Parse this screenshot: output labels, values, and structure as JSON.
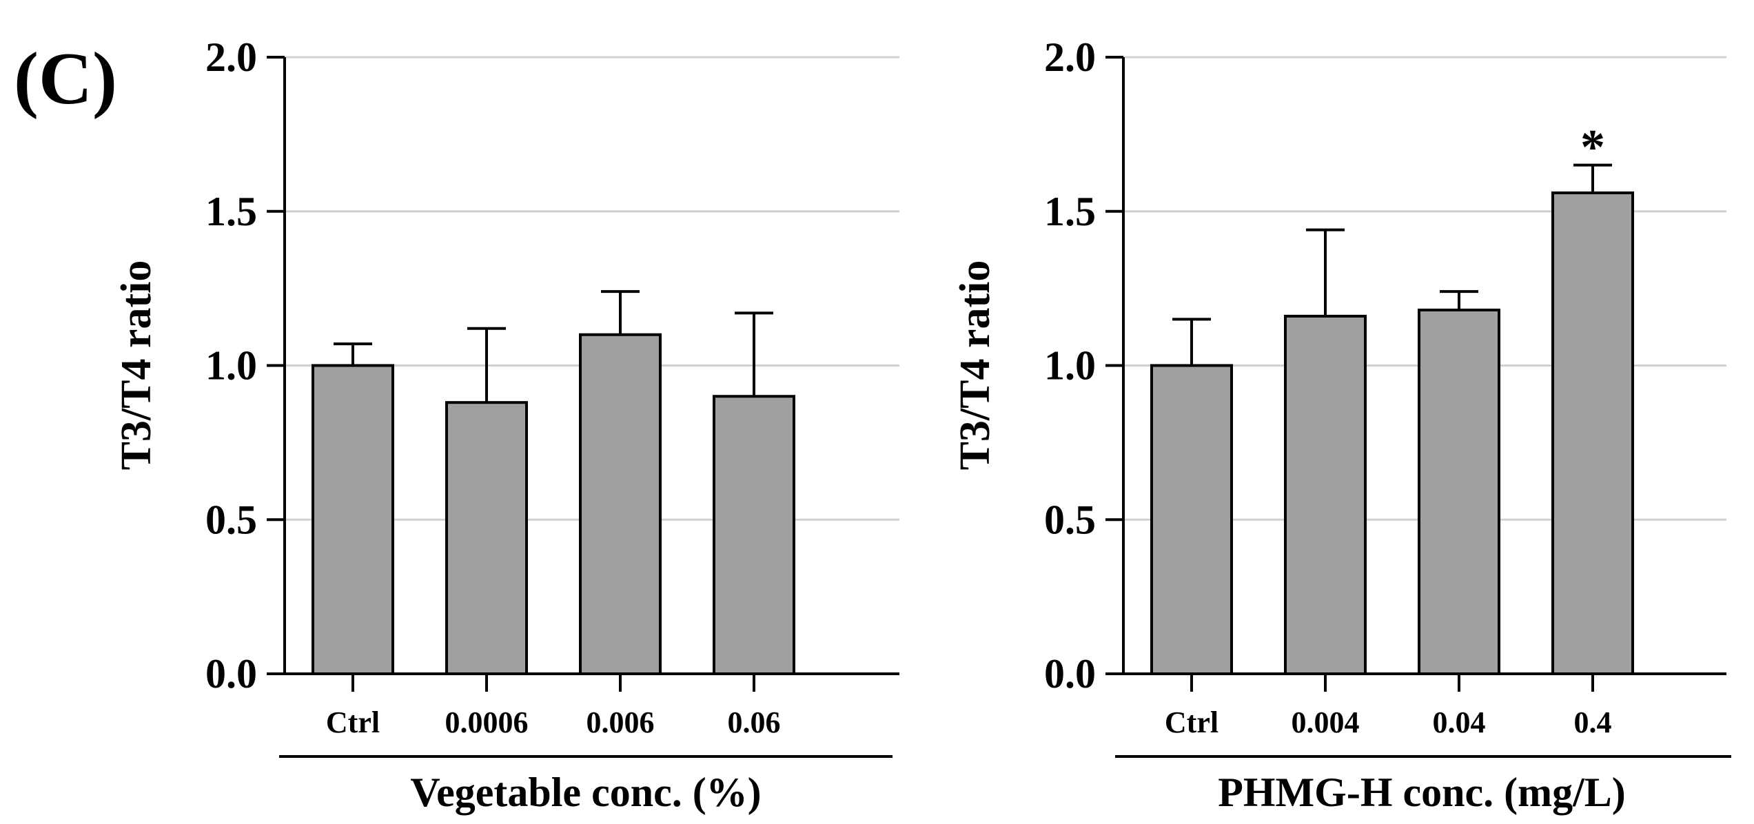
{
  "panel_label": "(C)",
  "chart_data": [
    {
      "type": "bar",
      "title": "",
      "ylabel": "T3/T4 ratio",
      "xlabel": "Vegetable conc. (%)",
      "categories": [
        "Ctrl",
        "0.0006",
        "0.006",
        "0.06"
      ],
      "values": [
        1.0,
        0.88,
        1.1,
        0.9
      ],
      "errors": [
        0.07,
        0.24,
        0.14,
        0.27
      ],
      "significance": [
        "",
        "",
        "",
        ""
      ],
      "ylim": [
        0,
        2.0
      ],
      "yticks": [
        0.0,
        0.5,
        1.0,
        1.5,
        2.0
      ],
      "ytick_labels": [
        "0.0",
        "0.5",
        "1.0",
        "1.5",
        "2.0"
      ],
      "grid": true,
      "bar_color": "#a0a0a0"
    },
    {
      "type": "bar",
      "title": "",
      "ylabel": "T3/T4 ratio",
      "xlabel": "PHMG-H conc. (mg/L)",
      "categories": [
        "Ctrl",
        "0.004",
        "0.04",
        "0.4"
      ],
      "values": [
        1.0,
        1.16,
        1.18,
        1.56
      ],
      "errors": [
        0.15,
        0.28,
        0.06,
        0.09
      ],
      "significance": [
        "",
        "",
        "",
        "*"
      ],
      "ylim": [
        0,
        2.0
      ],
      "yticks": [
        0.0,
        0.5,
        1.0,
        1.5,
        2.0
      ],
      "ytick_labels": [
        "0.0",
        "0.5",
        "1.0",
        "1.5",
        "2.0"
      ],
      "grid": true,
      "bar_color": "#a0a0a0"
    }
  ]
}
